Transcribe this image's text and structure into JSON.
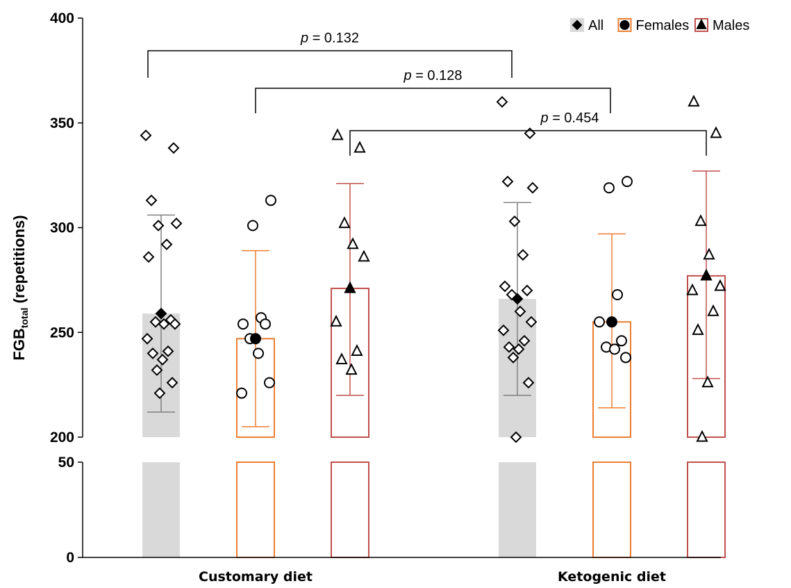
{
  "chart_data": {
    "type": "bar",
    "ylabel_main": "FGB",
    "ylabel_sub": "total",
    "ylabel_rest": " (repetitions)",
    "groups": [
      {
        "label": "Customary diet"
      },
      {
        "label": "Ketogenic diet"
      }
    ],
    "axis": {
      "broken": true,
      "lower_range": [
        0,
        50
      ],
      "upper_range": [
        200,
        400
      ],
      "lower_ticks": [
        "0",
        "50"
      ],
      "upper_ticks": [
        "200",
        "250",
        "300",
        "350",
        "400"
      ]
    },
    "legend": {
      "placement": "top-right",
      "entries": [
        {
          "label": "All",
          "marker": "diamond",
          "swatch": "#d9d9d9",
          "border": "#d9d9d9"
        },
        {
          "label": "Females",
          "marker": "circle",
          "swatch": "#ffffff",
          "border": "#ed7d31"
        },
        {
          "label": "Males",
          "marker": "triangle",
          "swatch": "#ffffff",
          "border": "#c0504d"
        }
      ]
    },
    "series": [
      {
        "key": "All",
        "marker": "diamond",
        "fill": "#d9d9d9",
        "stroke": "#d9d9d9",
        "err_color": "#7f7f7f",
        "bars": [
          {
            "group": 0,
            "mean": 259,
            "err": [
              212,
              306
            ],
            "points": [
              344,
              338,
              313,
              302,
              301,
              292,
              286,
              256,
              255,
              254,
              254,
              247,
              241,
              240,
              237,
              232,
              226,
              221
            ]
          },
          {
            "group": 1,
            "mean": 266,
            "err": [
              220,
              312
            ],
            "points": [
              360,
              345,
              322,
              319,
              303,
              287,
              272,
              270,
              268,
              260,
              255,
              251,
              246,
              243,
              242,
              238,
              226,
              200
            ]
          }
        ]
      },
      {
        "key": "Females",
        "marker": "circle",
        "fill": "#ffffff",
        "stroke": "#ed7d31",
        "err_color": "#ed7d31",
        "bars": [
          {
            "group": 0,
            "mean": 247,
            "err": [
              205,
              289
            ],
            "points": [
              313,
              301,
              257,
              254,
              254,
              247,
              240,
              226,
              221
            ]
          },
          {
            "group": 1,
            "mean": 255,
            "err": [
              214,
              297
            ],
            "points": [
              322,
              319,
              268,
              255,
              246,
              243,
              242,
              238
            ]
          }
        ]
      },
      {
        "key": "Males",
        "marker": "triangle",
        "fill": "#ffffff",
        "stroke": "#c0504d",
        "err_color": "#c0504d",
        "bars": [
          {
            "group": 0,
            "mean": 271,
            "err": [
              220,
              321
            ],
            "points": [
              344,
              338,
              302,
              292,
              286,
              255,
              241,
              237,
              232
            ]
          },
          {
            "group": 1,
            "mean": 277,
            "err": [
              228,
              327
            ],
            "points": [
              360,
              345,
              303,
              287,
              272,
              270,
              260,
              251,
              226,
              200
            ]
          }
        ]
      }
    ],
    "comparisons": [
      {
        "label_p": "p",
        "label_value": " = 0.132",
        "series": "All"
      },
      {
        "label_p": "p",
        "label_value": " = 0.128",
        "series": "Females"
      },
      {
        "label_p": "p",
        "label_value": " = 0.454",
        "series": "Males"
      }
    ]
  }
}
